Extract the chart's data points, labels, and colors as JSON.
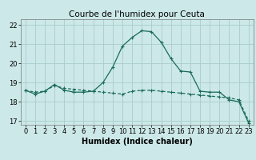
{
  "title": "Courbe de l'humidex pour Ceuta",
  "xlabel": "Humidex (Indice chaleur)",
  "background_color": "#cce8e8",
  "grid_color": "#aacccc",
  "line_color": "#1a6b5a",
  "x": [
    0,
    1,
    2,
    3,
    4,
    5,
    6,
    7,
    8,
    9,
    10,
    11,
    12,
    13,
    14,
    15,
    16,
    17,
    18,
    19,
    20,
    21,
    22,
    23
  ],
  "line1": [
    18.6,
    18.4,
    18.55,
    18.9,
    18.6,
    18.5,
    18.5,
    18.55,
    19.0,
    19.8,
    20.9,
    21.35,
    21.7,
    21.65,
    21.1,
    20.25,
    19.6,
    19.55,
    18.55,
    18.5,
    18.5,
    18.1,
    18.0,
    16.9
  ],
  "line2": [
    18.6,
    18.5,
    18.55,
    18.85,
    18.7,
    18.65,
    18.6,
    18.55,
    18.5,
    18.45,
    18.4,
    18.55,
    18.6,
    18.6,
    18.55,
    18.5,
    18.45,
    18.4,
    18.35,
    18.3,
    18.25,
    18.2,
    18.1,
    17.0
  ],
  "ylim": [
    16.8,
    22.3
  ],
  "yticks": [
    17,
    18,
    19,
    20,
    21,
    22
  ],
  "xticks": [
    0,
    1,
    2,
    3,
    4,
    5,
    6,
    7,
    8,
    9,
    10,
    11,
    12,
    13,
    14,
    15,
    16,
    17,
    18,
    19,
    20,
    21,
    22,
    23
  ],
  "title_fontsize": 7.5,
  "xlabel_fontsize": 7,
  "tick_fontsize": 6
}
